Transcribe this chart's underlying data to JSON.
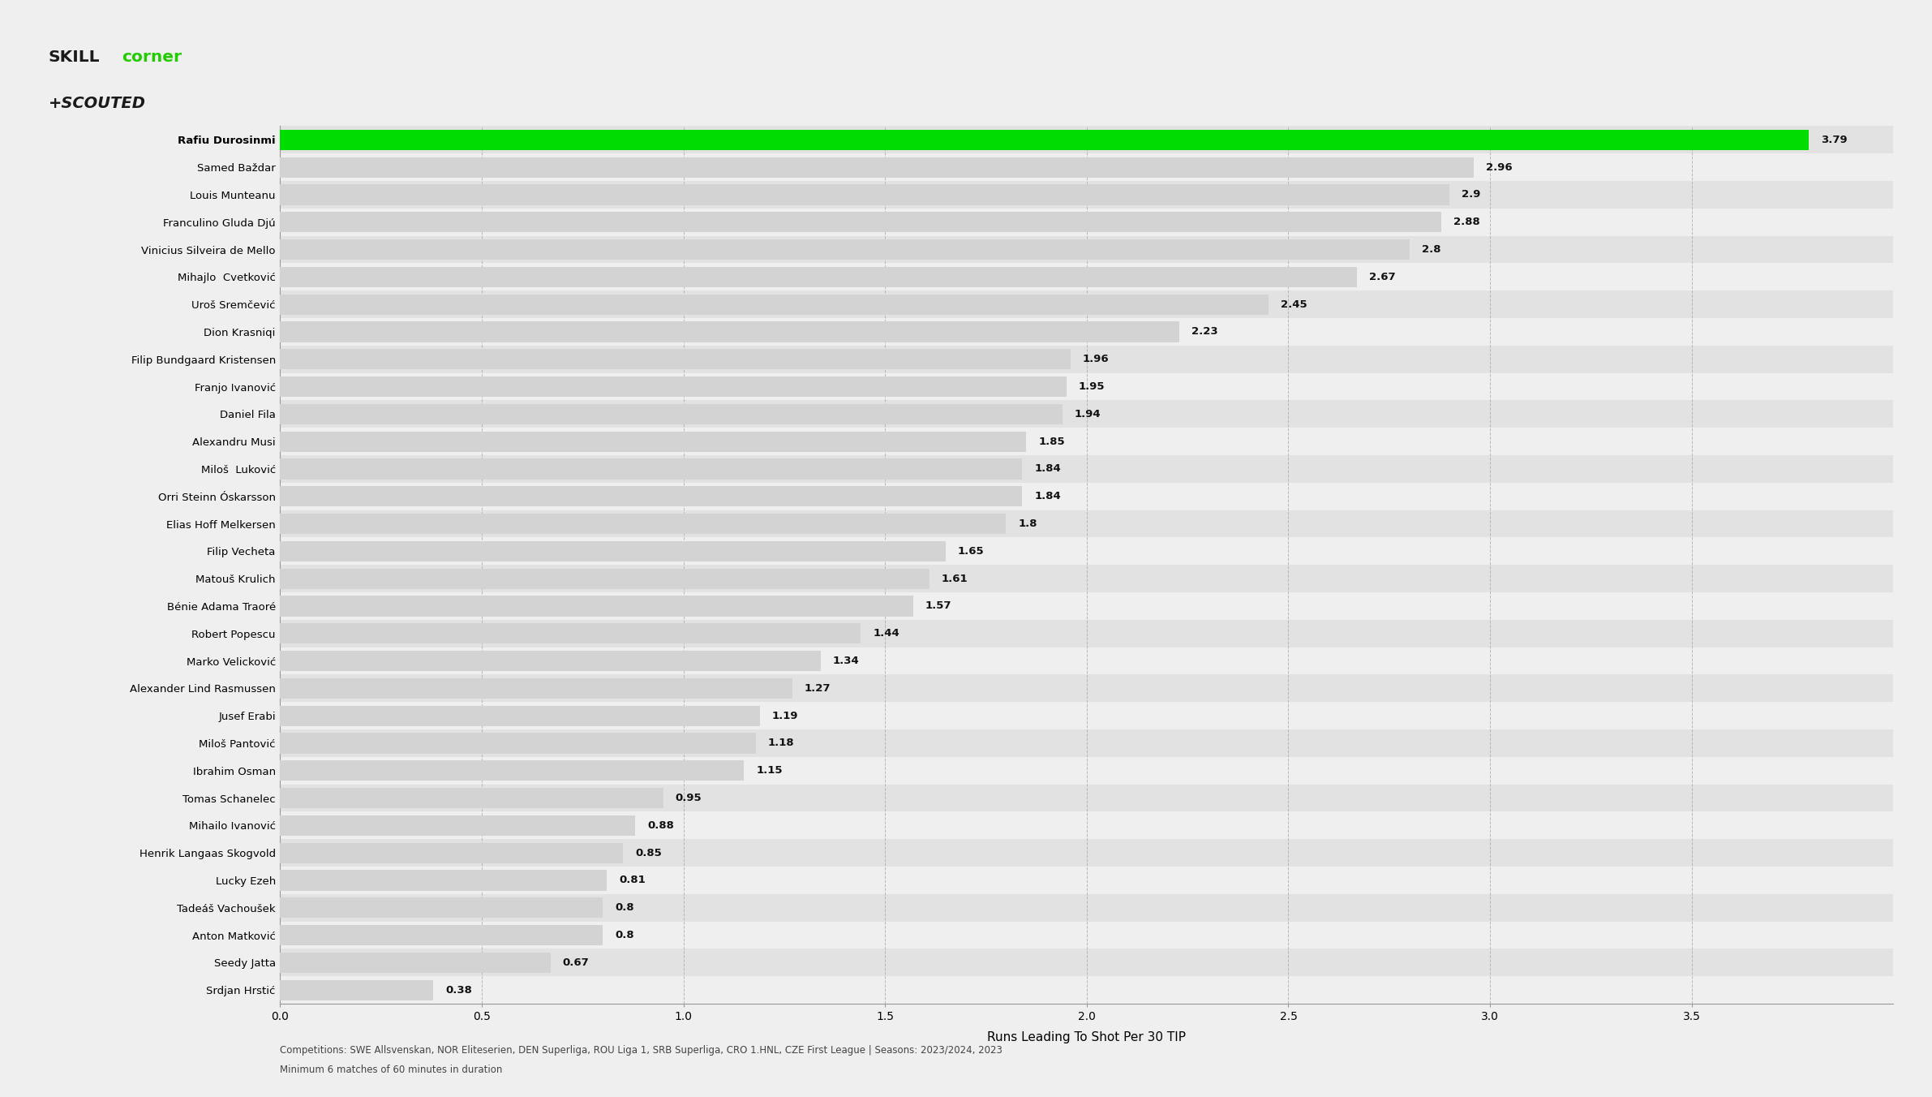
{
  "players": [
    "Rafiu Durosinmi",
    "Samed Baždar",
    "Louis Munteanu",
    "Franculino Gluda Djú",
    "Vinicius Silveira de Mello",
    "Mihajlo  Cvetković",
    "Uroš Sremčević",
    "Dion Krasniqi",
    "Filip Bundgaard Kristensen",
    "Franjo Ivanović",
    "Daniel Fila",
    "Alexandru Musi",
    "Miloš  Luković",
    "Orri Steinn Óskarsson",
    "Elias Hoff Melkersen",
    "Filip Vecheta",
    "Matouš Krulich",
    "Bénie Adama Traoré",
    "Robert Popescu",
    "Marko Velicković",
    "Alexander Lind Rasmussen",
    "Jusef Erabi",
    "Miloš Pantović",
    "Ibrahim Osman",
    "Tomas Schanelec",
    "Mihailo Ivanović",
    "Henrik Langaas Skogvold",
    "Lucky Ezeh",
    "Tadeáš Vachoušek",
    "Anton Matković",
    "Seedy Jatta",
    "Srdjan Hrstić"
  ],
  "values": [
    3.79,
    2.96,
    2.9,
    2.88,
    2.8,
    2.67,
    2.45,
    2.23,
    1.96,
    1.95,
    1.94,
    1.85,
    1.84,
    1.84,
    1.8,
    1.65,
    1.61,
    1.57,
    1.44,
    1.34,
    1.27,
    1.19,
    1.18,
    1.15,
    0.95,
    0.88,
    0.85,
    0.81,
    0.8,
    0.8,
    0.67,
    0.38
  ],
  "bar_color_default": "#d3d3d3",
  "bar_color_highlight": "#00dd00",
  "background_color": "#efefef",
  "row_color_even": "#e2e2e2",
  "row_color_odd": "#efefef",
  "xlabel": "Runs Leading To Shot Per 30 TIP",
  "xlim_max": 4.0,
  "xticks": [
    0.0,
    0.5,
    1.0,
    1.5,
    2.0,
    2.5,
    3.0,
    3.5
  ],
  "grid_color": "#aaaaaa",
  "footer_line1": "Competitions: SWE Allsvenskan, NOR Eliteserien, DEN Superliga, ROU Liga 1, SRB Superliga, CRO 1.HNL, CZE First League | Seasons: 2023/2024, 2023",
  "footer_line2": "Minimum 6 matches of 60 minutes in duration",
  "label_fontsize": 9.5,
  "name_fontsize": 9.5,
  "xlabel_fontsize": 11,
  "footer_fontsize": 8.5,
  "bar_height": 0.75
}
